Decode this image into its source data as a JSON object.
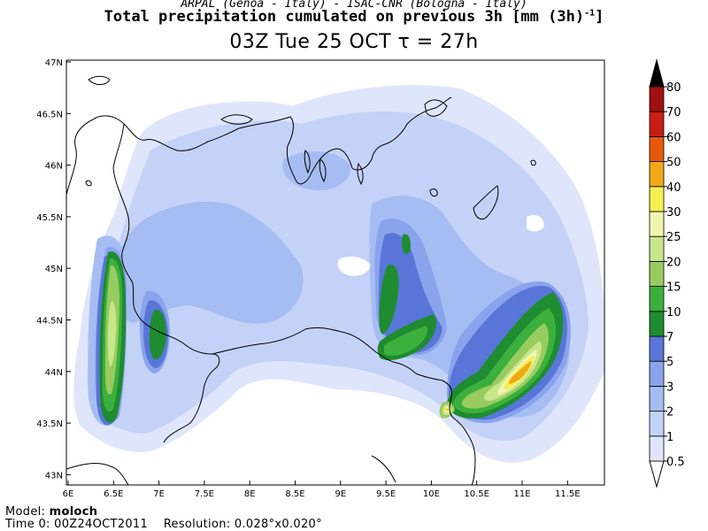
{
  "header": {
    "credits": "ARPAL (Genoa - Italy)  -  ISAC-CNR (Bologna - Italy)",
    "title": "Total precipitation cumulated on previous 3h [mm (3h)",
    "title_exponent": "-1",
    "title_close": "]",
    "subtitle": "03Z Tue 25 OCT  τ = 27h"
  },
  "map": {
    "lon_labels": [
      "6E",
      "6.5E",
      "7E",
      "7.5E",
      "8E",
      "8.5E",
      "9E",
      "9.5E",
      "10E",
      "10.5E",
      "11E",
      "11.5E"
    ],
    "lat_labels": [
      "47N",
      "46.5N",
      "46N",
      "45.5N",
      "45N",
      "44.5N",
      "44N",
      "43.5N",
      "43N"
    ]
  },
  "colorbar": {
    "levels": [
      "0.5",
      "1",
      "2",
      "3",
      "5",
      "7",
      "10",
      "15",
      "20",
      "25",
      "30",
      "40",
      "50",
      "60",
      "70",
      "80"
    ],
    "colors": [
      "#dfe6fb",
      "#c4d2f8",
      "#a6bdf3",
      "#8aa3ec",
      "#5876d8",
      "#1e8c30",
      "#3cb03c",
      "#98cc60",
      "#c8e68c",
      "#f2f5b0",
      "#f5f050",
      "#f0a818",
      "#e8580a",
      "#c81e14",
      "#a01010",
      "#6e0808",
      "#000000"
    ]
  },
  "footer": {
    "model_label": "Model:",
    "model_value": "moloch",
    "time_label": "Time 0:",
    "time_value": "00Z24OCT2011",
    "resolution_label": "Resolution:",
    "resolution_value": "0.028°x0.020°"
  }
}
